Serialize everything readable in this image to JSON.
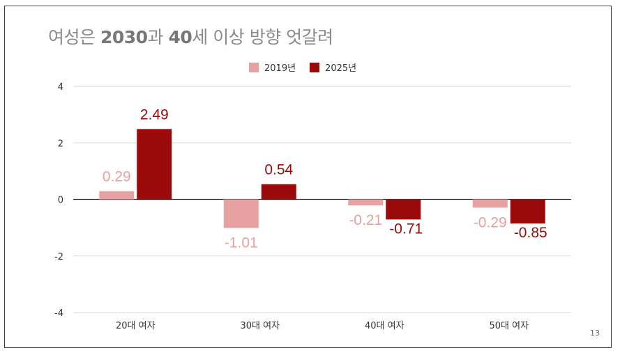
{
  "slide": {
    "title_parts": [
      {
        "text": "여성은 ",
        "bold": false
      },
      {
        "text": "2030",
        "bold": true
      },
      {
        "text": "과 ",
        "bold": false
      },
      {
        "text": "40",
        "bold": true
      },
      {
        "text": "세 이상 방향 엇갈려",
        "bold": false
      }
    ],
    "page_number": "13"
  },
  "colors": {
    "series_2019": "#e8a1a1",
    "series_2025": "#9b0a0a",
    "axis_text": "#333333",
    "grid": "#d9d9d9",
    "baseline": "#333333"
  },
  "chart_data": {
    "type": "bar",
    "title": "여성은 2030과 40세 이상 방향 엇갈려",
    "categories": [
      "20대 여자",
      "30대 여자",
      "40대 여자",
      "50대 여자"
    ],
    "series": [
      {
        "name": "2019년",
        "values": [
          0.29,
          -1.01,
          -0.21,
          -0.29
        ],
        "labels": [
          "0.29",
          "-1.01",
          "-0.21",
          "-0.29"
        ]
      },
      {
        "name": "2025년",
        "values": [
          2.49,
          0.54,
          -0.71,
          -0.85
        ],
        "labels": [
          "2.49",
          "0.54",
          "-0.71",
          "-0.85"
        ]
      }
    ],
    "ylim": [
      -4,
      4
    ],
    "yticks": [
      "4",
      "2",
      "0",
      "-2",
      "-4"
    ],
    "ytick_values": [
      4,
      2,
      0,
      -2,
      -4
    ],
    "grid": true,
    "legend_position": "top-center",
    "xlabel": "",
    "ylabel": ""
  }
}
